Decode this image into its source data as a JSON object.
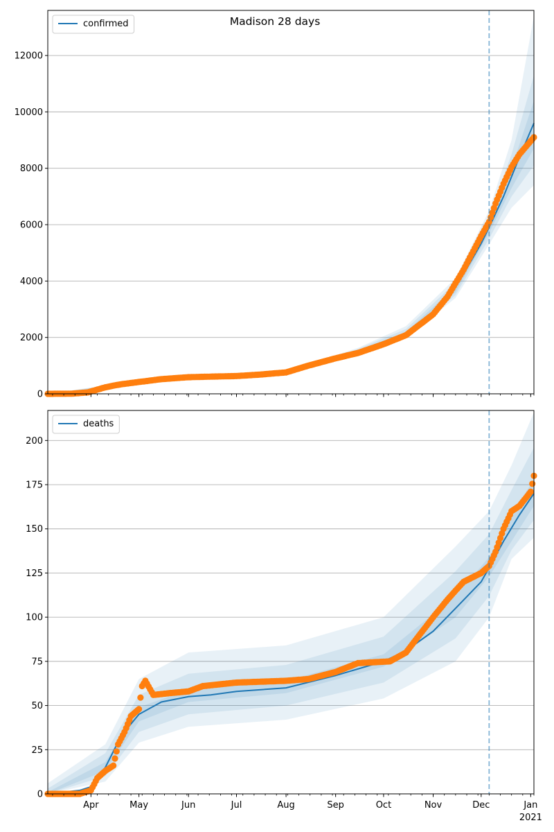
{
  "title": "Madison 28 days",
  "colors": {
    "model": "#1f77b4",
    "observed": "#ff7f0e",
    "band": "#1f77b4",
    "grid": "#b0b0b0",
    "forecast_line": "#1f77b4"
  },
  "x_axis": {
    "month_ticks": [
      "Apr",
      "May",
      "Jun",
      "Jul",
      "Aug",
      "Sep",
      "Oct",
      "Nov",
      "Dec",
      "Jan"
    ],
    "year_label": "2021"
  },
  "chart_data": [
    {
      "type": "line",
      "legend": "confirmed",
      "legend_position": "upper-left",
      "grid": "horizontal",
      "x_range": [
        "2020-03-05",
        "2021-01-03"
      ],
      "ylim": [
        0,
        13600
      ],
      "yticks": [
        0,
        2000,
        4000,
        6000,
        8000,
        10000,
        12000
      ],
      "forecast_start": "2020-12-06",
      "series": [
        {
          "name": "confirmed",
          "kind": "model",
          "x": [
            "2020-03-05",
            "2020-03-20",
            "2020-03-30",
            "2020-04-10",
            "2020-04-20",
            "2020-05-01",
            "2020-05-15",
            "2020-06-01",
            "2020-06-15",
            "2020-07-01",
            "2020-07-15",
            "2020-08-01",
            "2020-08-15",
            "2020-09-01",
            "2020-09-15",
            "2020-10-01",
            "2020-10-15",
            "2020-11-01",
            "2020-11-10",
            "2020-11-20",
            "2020-12-01",
            "2020-12-06",
            "2020-12-15",
            "2020-12-25",
            "2021-01-03"
          ],
          "y": [
            0,
            5,
            40,
            150,
            320,
            430,
            530,
            600,
            620,
            640,
            680,
            740,
            940,
            1270,
            1520,
            1820,
            2150,
            2820,
            3380,
            4250,
            5330,
            5900,
            7000,
            8400,
            9600
          ]
        },
        {
          "name": "observed confirmed",
          "kind": "observed",
          "x": [
            "2020-03-05",
            "2020-03-20",
            "2020-03-30",
            "2020-04-05",
            "2020-04-10",
            "2020-04-15",
            "2020-04-20",
            "2020-05-01",
            "2020-05-15",
            "2020-06-01",
            "2020-06-15",
            "2020-07-01",
            "2020-07-15",
            "2020-08-01",
            "2020-08-15",
            "2020-09-01",
            "2020-09-15",
            "2020-10-01",
            "2020-10-15",
            "2020-11-01",
            "2020-11-10",
            "2020-11-20",
            "2020-12-01",
            "2020-12-06",
            "2020-12-10",
            "2020-12-15",
            "2020-12-20",
            "2020-12-25",
            "2021-01-03"
          ],
          "y": [
            0,
            5,
            50,
            150,
            230,
            290,
            340,
            420,
            520,
            590,
            610,
            630,
            680,
            760,
            1000,
            1260,
            1450,
            1760,
            2080,
            2820,
            3450,
            4400,
            5600,
            6100,
            6750,
            7450,
            8050,
            8500,
            9100
          ]
        }
      ],
      "bands": [
        {
          "label": "inner",
          "x": [
            "2020-03-05",
            "2020-04-20",
            "2020-06-01",
            "2020-08-01",
            "2020-09-15",
            "2020-10-15",
            "2020-11-15",
            "2020-12-06",
            "2020-12-20",
            "2021-01-03"
          ],
          "lower": [
            0,
            300,
            570,
            720,
            1490,
            2100,
            3600,
            5700,
            7300,
            8700
          ],
          "upper": [
            0,
            340,
            630,
            760,
            1550,
            2200,
            3800,
            6100,
            8000,
            10400
          ]
        },
        {
          "label": "middle",
          "x": [
            "2020-03-05",
            "2020-04-20",
            "2020-06-01",
            "2020-08-01",
            "2020-09-15",
            "2020-10-15",
            "2020-11-15",
            "2020-12-06",
            "2020-12-20",
            "2021-01-03"
          ],
          "lower": [
            0,
            280,
            550,
            700,
            1450,
            2050,
            3500,
            5500,
            7000,
            8100
          ],
          "upper": [
            0,
            360,
            650,
            780,
            1590,
            2300,
            3950,
            6300,
            8500,
            11300
          ]
        },
        {
          "label": "outer",
          "x": [
            "2020-03-05",
            "2020-04-20",
            "2020-06-01",
            "2020-08-01",
            "2020-09-15",
            "2020-10-15",
            "2020-11-15",
            "2020-12-06",
            "2020-12-20",
            "2021-01-03"
          ],
          "lower": [
            0,
            260,
            530,
            680,
            1410,
            1990,
            3400,
            5300,
            6600,
            7400
          ],
          "upper": [
            0,
            380,
            670,
            800,
            1630,
            2400,
            4100,
            6500,
            9000,
            13400
          ]
        }
      ]
    },
    {
      "type": "line",
      "legend": "deaths",
      "legend_position": "upper-left",
      "grid": "horizontal",
      "x_range": [
        "2020-03-05",
        "2021-01-03"
      ],
      "ylim": [
        0,
        217
      ],
      "yticks": [
        0,
        25,
        50,
        75,
        100,
        125,
        150,
        175,
        200
      ],
      "forecast_start": "2020-12-06",
      "series": [
        {
          "name": "deaths",
          "kind": "model",
          "x": [
            "2020-03-05",
            "2020-03-25",
            "2020-04-01",
            "2020-04-10",
            "2020-04-20",
            "2020-05-01",
            "2020-05-15",
            "2020-06-01",
            "2020-06-15",
            "2020-07-01",
            "2020-08-01",
            "2020-09-01",
            "2020-10-01",
            "2020-10-15",
            "2020-11-01",
            "2020-11-15",
            "2020-12-01",
            "2020-12-06",
            "2020-12-15",
            "2020-12-25",
            "2021-01-03"
          ],
          "y": [
            0,
            2,
            4,
            15,
            33,
            45,
            52,
            55,
            56,
            58,
            60,
            67,
            75,
            81,
            92,
            105,
            120,
            128,
            143,
            158,
            170
          ]
        },
        {
          "name": "observed deaths",
          "kind": "observed",
          "x": [
            "2020-03-05",
            "2020-03-25",
            "2020-04-01",
            "2020-04-05",
            "2020-04-10",
            "2020-04-15",
            "2020-04-18",
            "2020-04-22",
            "2020-04-26",
            "2020-05-01",
            "2020-05-03",
            "2020-05-05",
            "2020-05-10",
            "2020-05-20",
            "2020-06-01",
            "2020-06-10",
            "2020-07-01",
            "2020-08-01",
            "2020-08-15",
            "2020-09-01",
            "2020-09-15",
            "2020-10-05",
            "2020-10-15",
            "2020-11-01",
            "2020-11-10",
            "2020-11-20",
            "2020-12-01",
            "2020-12-06",
            "2020-12-10",
            "2020-12-15",
            "2020-12-20",
            "2020-12-25",
            "2021-01-01",
            "2021-01-03"
          ],
          "y": [
            0,
            0,
            2,
            9,
            13,
            16,
            28,
            35,
            44,
            48,
            61,
            64,
            56,
            57,
            58,
            61,
            63,
            64,
            65,
            69,
            74,
            75,
            80,
            100,
            110,
            120,
            125,
            129,
            137,
            150,
            160,
            163,
            171,
            180
          ]
        }
      ],
      "bands": [
        {
          "label": "inner",
          "x": [
            "2020-03-05",
            "2020-04-10",
            "2020-05-01",
            "2020-06-01",
            "2020-08-01",
            "2020-10-01",
            "2020-11-15",
            "2020-12-06",
            "2020-12-20",
            "2021-01-03"
          ],
          "lower": [
            0,
            13,
            41,
            52,
            57,
            72,
            100,
            123,
            143,
            163
          ],
          "upper": [
            1,
            18,
            49,
            59,
            64,
            79,
            112,
            134,
            158,
            178
          ]
        },
        {
          "label": "middle",
          "x": [
            "2020-03-05",
            "2020-04-10",
            "2020-05-01",
            "2020-06-01",
            "2020-08-01",
            "2020-10-01",
            "2020-11-15",
            "2020-12-06",
            "2020-12-20",
            "2021-01-03"
          ],
          "lower": [
            0,
            10,
            35,
            45,
            50,
            63,
            88,
            112,
            138,
            155
          ],
          "upper": [
            3,
            23,
            56,
            68,
            73,
            89,
            126,
            147,
            172,
            196
          ]
        },
        {
          "label": "outer",
          "x": [
            "2020-03-05",
            "2020-04-10",
            "2020-05-01",
            "2020-06-01",
            "2020-08-01",
            "2020-10-01",
            "2020-11-15",
            "2020-12-06",
            "2020-12-20",
            "2021-01-03"
          ],
          "lower": [
            0,
            7,
            29,
            38,
            42,
            54,
            75,
            100,
            133,
            145
          ],
          "upper": [
            6,
            28,
            65,
            80,
            84,
            100,
            140,
            160,
            186,
            216
          ]
        }
      ]
    }
  ]
}
